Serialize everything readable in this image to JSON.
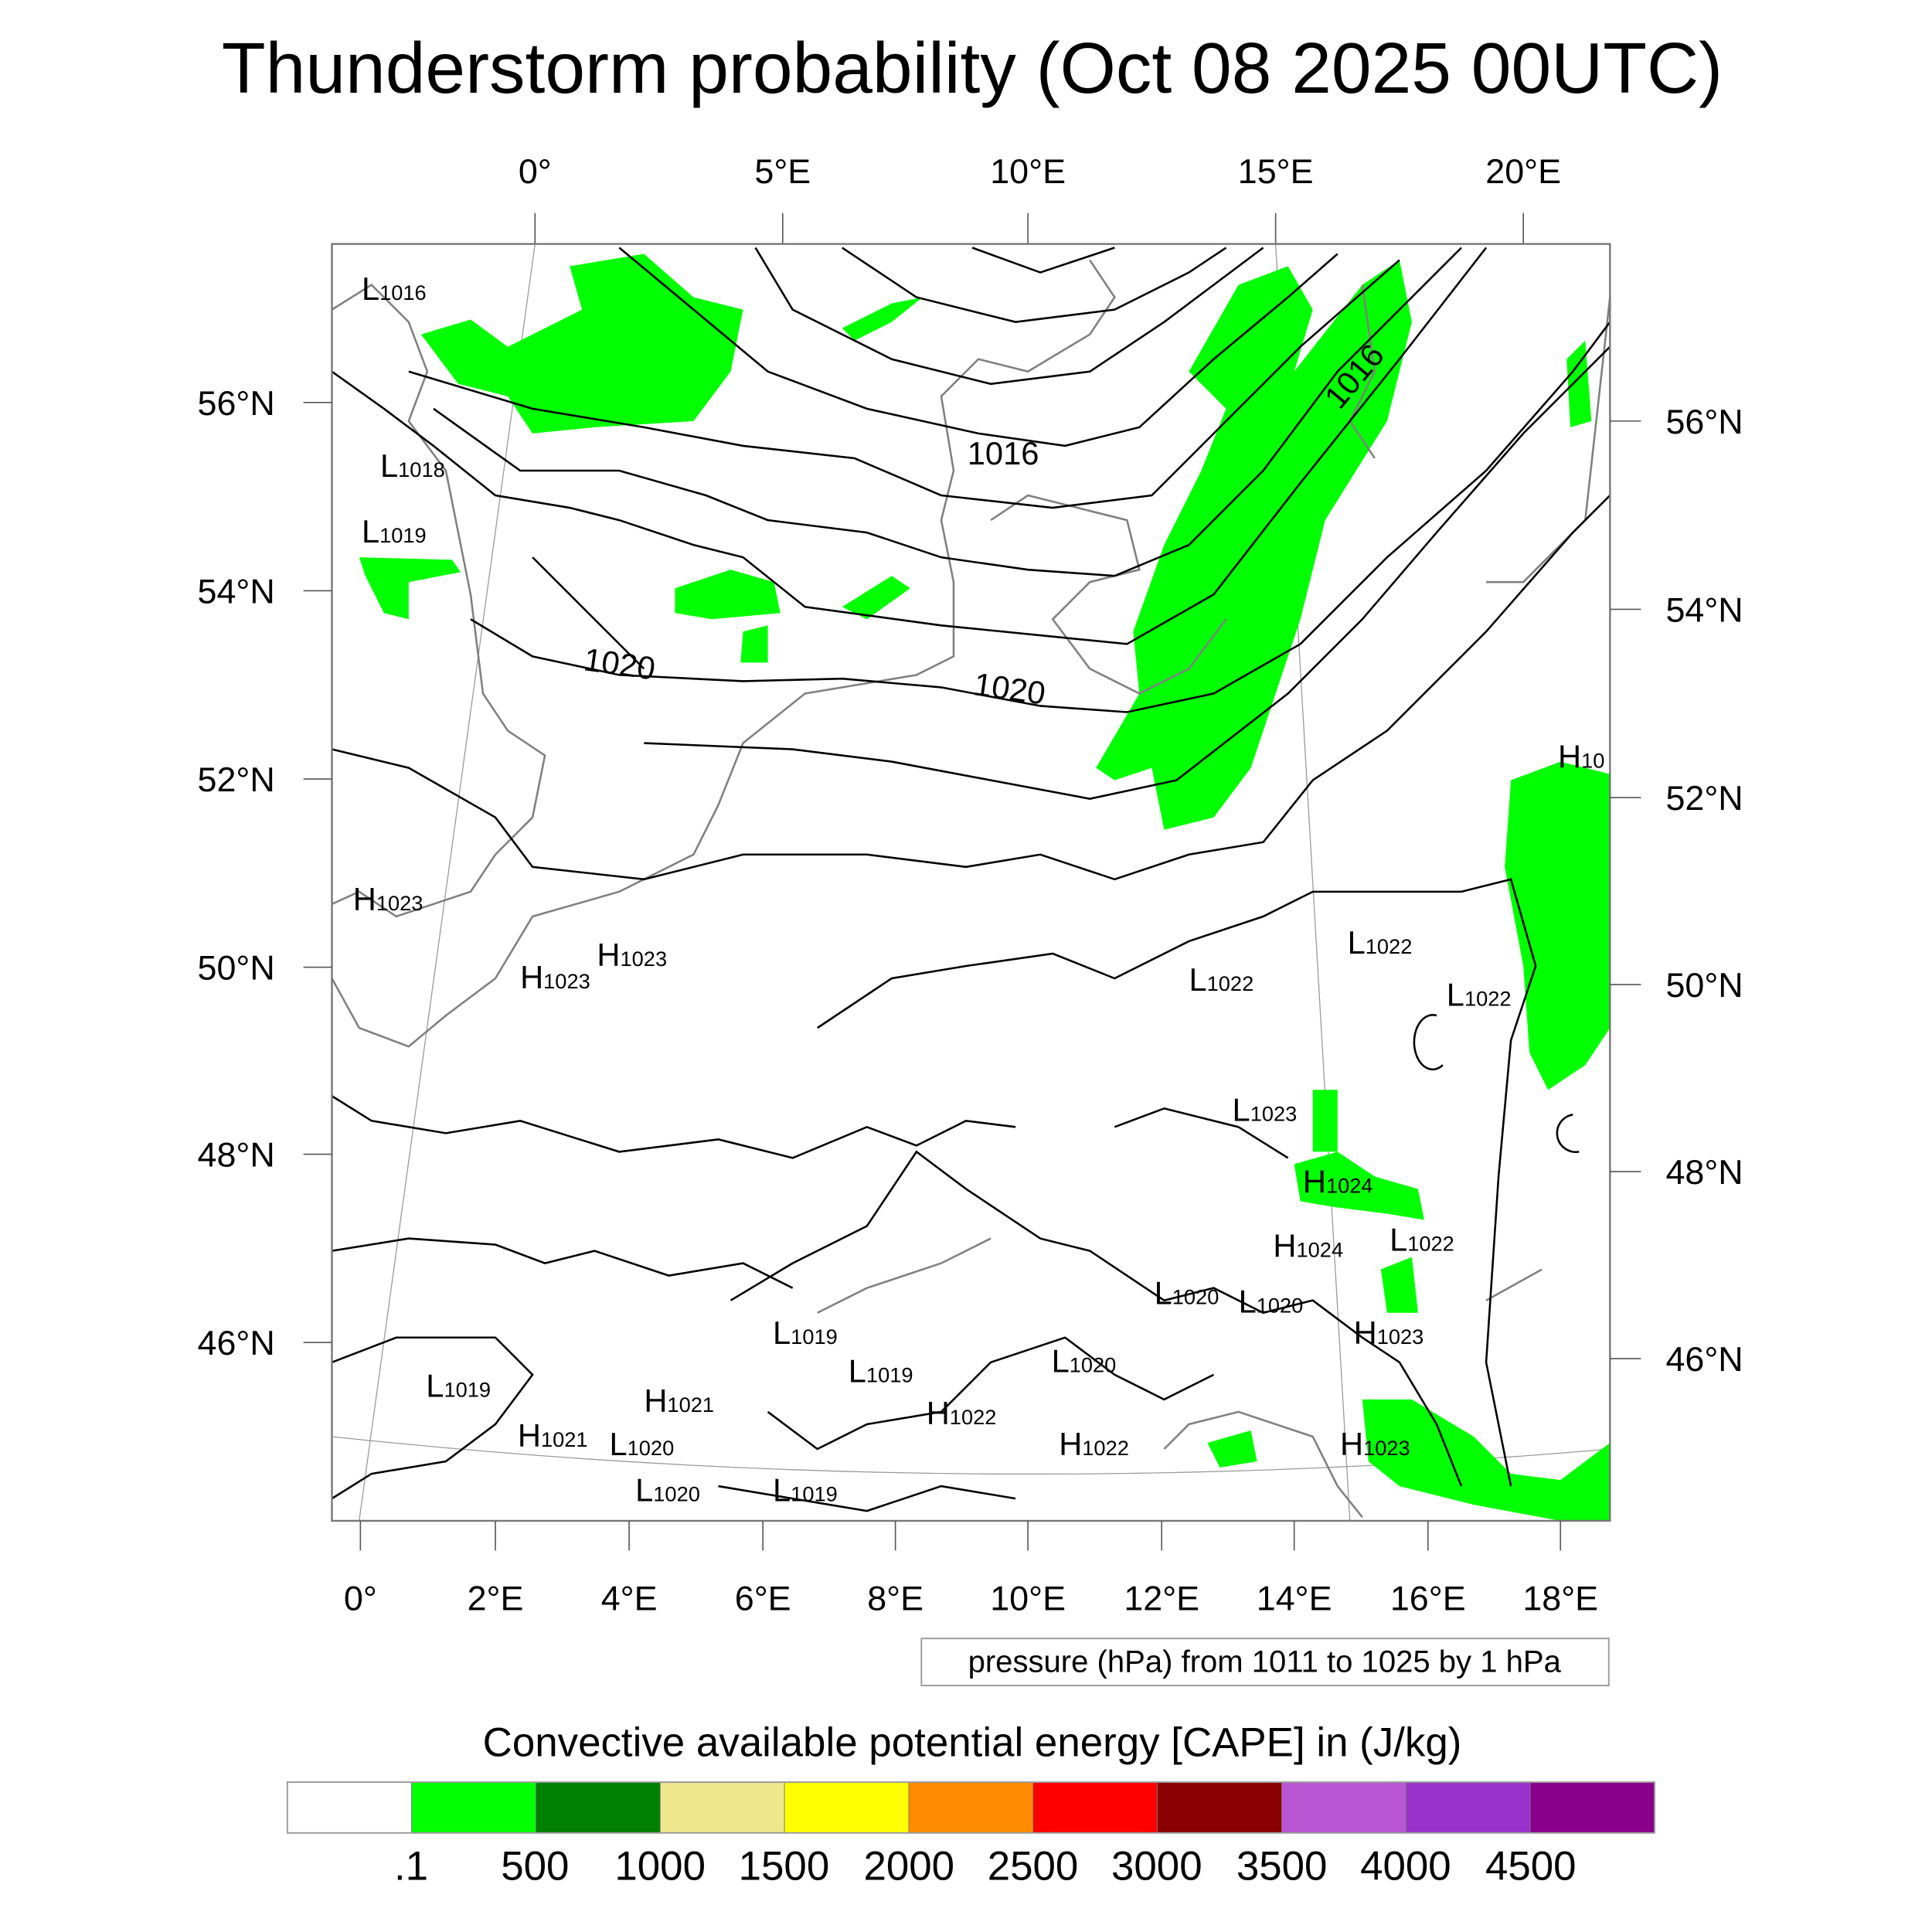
{
  "title": "Thunderstorm probability (Oct 08 2025 00UTC)",
  "map": {
    "top_lon_ticks": [
      "0°",
      "5°E",
      "10°E",
      "15°E",
      "20°E"
    ],
    "bottom_lon_ticks": [
      "0°",
      "2°E",
      "4°E",
      "6°E",
      "8°E",
      "10°E",
      "12°E",
      "14°E",
      "16°E",
      "18°E"
    ],
    "left_lat_ticks": [
      "56°N",
      "54°N",
      "52°N",
      "50°N",
      "48°N",
      "46°N"
    ],
    "right_lat_ticks": [
      "56°N",
      "54°N",
      "52°N",
      "50°N",
      "48°N",
      "46°N"
    ],
    "isobar_labels": [
      "1016",
      "1016",
      "1020",
      "1020"
    ],
    "pressure_centers": [
      {
        "type": "L",
        "value": "1016"
      },
      {
        "type": "L",
        "value": "1018"
      },
      {
        "type": "L",
        "value": "1019"
      },
      {
        "type": "H",
        "value": "1023"
      },
      {
        "type": "H",
        "value": "1023"
      },
      {
        "type": "H",
        "value": "1023"
      },
      {
        "type": "L",
        "value": "1022"
      },
      {
        "type": "L",
        "value": "1022"
      },
      {
        "type": "L",
        "value": "1022"
      },
      {
        "type": "H",
        "value": "10"
      },
      {
        "type": "L",
        "value": "1023"
      },
      {
        "type": "H",
        "value": "1024"
      },
      {
        "type": "H",
        "value": "1024"
      },
      {
        "type": "L",
        "value": "1022"
      },
      {
        "type": "L",
        "value": "1020"
      },
      {
        "type": "L",
        "value": "1020"
      },
      {
        "type": "H",
        "value": "1023"
      },
      {
        "type": "L",
        "value": "1019"
      },
      {
        "type": "L",
        "value": "1019"
      },
      {
        "type": "L",
        "value": "1020"
      },
      {
        "type": "H",
        "value": "1022"
      },
      {
        "type": "H",
        "value": "1022"
      },
      {
        "type": "H",
        "value": "1023"
      },
      {
        "type": "L",
        "value": "1019"
      },
      {
        "type": "H",
        "value": "1021"
      },
      {
        "type": "H",
        "value": "1021"
      },
      {
        "type": "L",
        "value": "1020"
      },
      {
        "type": "L",
        "value": "1020"
      },
      {
        "type": "L",
        "value": "1019"
      }
    ],
    "contour_info": "pressure (hPa) from 1011 to 1025 by 1 hPa"
  },
  "colorbar": {
    "title": "Convective available potential energy [CAPE] in (J/kg)",
    "colors": [
      "#ffffff",
      "#00ff00",
      "#008000",
      "#f0e68c",
      "#ffff00",
      "#ff8c00",
      "#ff0000",
      "#8b0000",
      "#ba55d3",
      "#9932cc",
      "#8b008b"
    ],
    "labels": [
      ".1",
      "500",
      "1000",
      "1500",
      "2000",
      "2500",
      "3000",
      "3500",
      "4000",
      "4500"
    ]
  }
}
